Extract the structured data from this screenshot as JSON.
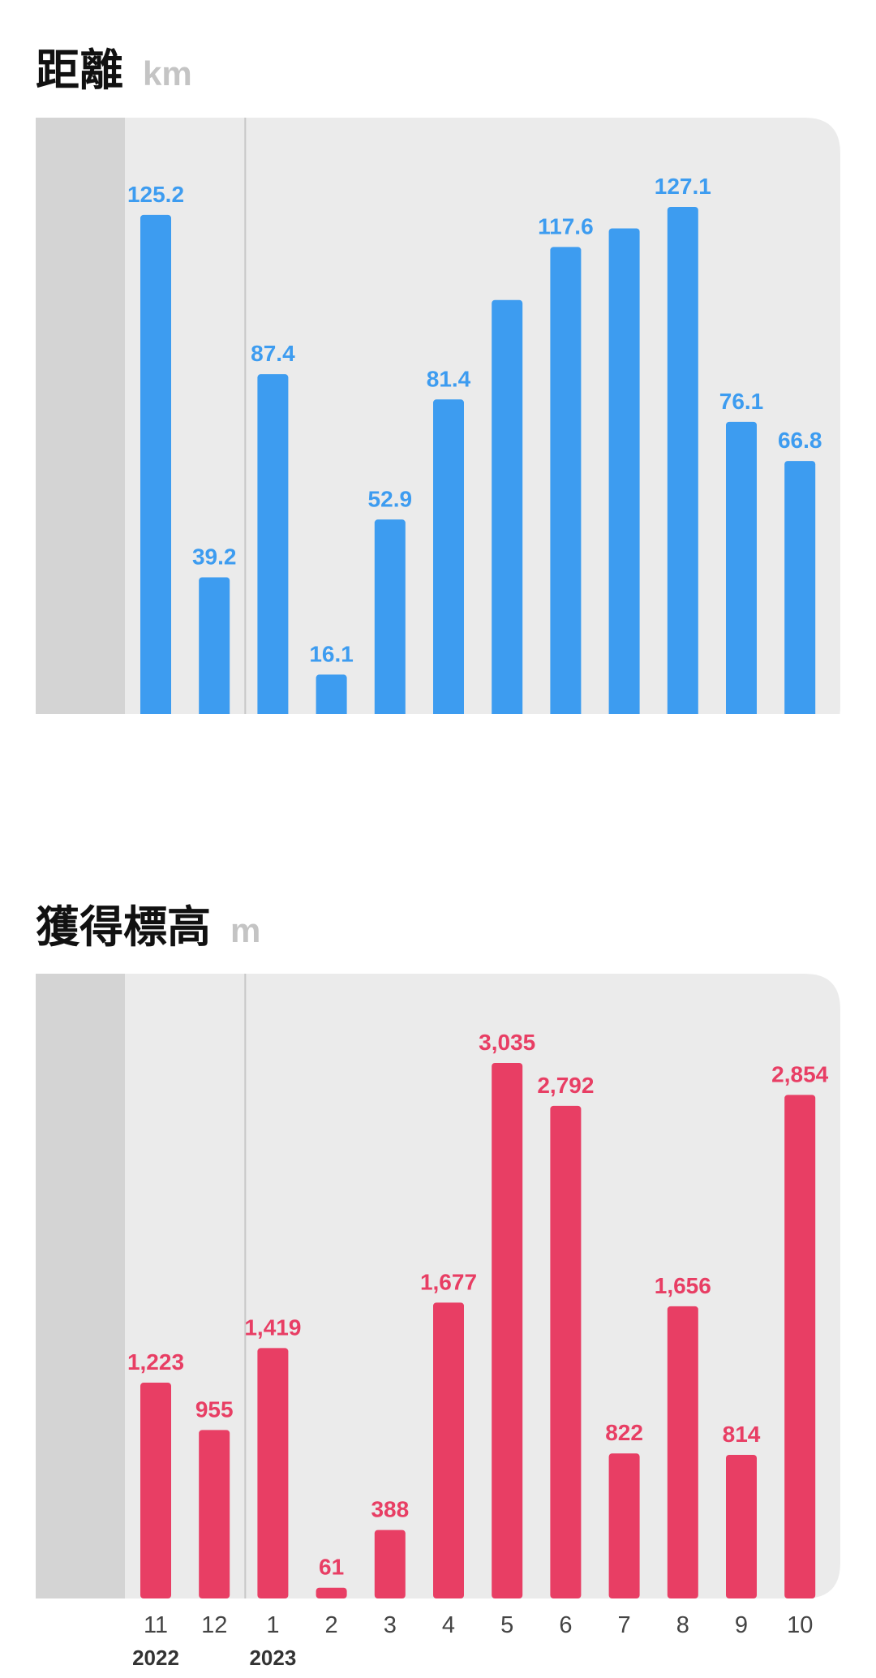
{
  "chart_data": [
    {
      "type": "bar",
      "title": "距離",
      "unit": "km",
      "categories": [
        "11",
        "12",
        "1",
        "2",
        "3",
        "4",
        "5",
        "6",
        "7",
        "8",
        "9",
        "10"
      ],
      "years": [
        {
          "label": "2022",
          "at_index": 0
        },
        {
          "label": "2023",
          "at_index": 2
        }
      ],
      "values": [
        125.2,
        39.2,
        87.4,
        16.1,
        52.9,
        81.4,
        105.0,
        117.6,
        122.0,
        127.1,
        76.1,
        66.8
      ],
      "value_labels": [
        "125.2",
        "39.2",
        "87.4",
        "16.1",
        "52.9",
        "81.4",
        "",
        "117.6",
        "",
        "127.1",
        "76.1",
        "66.8"
      ],
      "ylim": [
        0,
        127.1
      ],
      "color": "#3d9cf0"
    },
    {
      "type": "bar",
      "title": "獲得標高",
      "unit": "m",
      "categories": [
        "11",
        "12",
        "1",
        "2",
        "3",
        "4",
        "5",
        "6",
        "7",
        "8",
        "9",
        "10"
      ],
      "years": [
        {
          "label": "2022",
          "at_index": 0
        },
        {
          "label": "2023",
          "at_index": 2
        }
      ],
      "values": [
        1223,
        955,
        1419,
        61,
        388,
        1677,
        3035,
        2792,
        822,
        1656,
        814,
        2854
      ],
      "value_labels": [
        "1,223",
        "955",
        "1,419",
        "61",
        "388",
        "1,677",
        "3,035",
        "2,792",
        "822",
        "1,656",
        "814",
        "2,854"
      ],
      "ylim": [
        0,
        3035
      ],
      "color": "#e83e64"
    }
  ],
  "colors": {
    "panel_bg": "#ebebeb",
    "gutter_bg": "#d4d4d4",
    "divider": "#c8c8c8",
    "tick_text": "#444444",
    "year_text": "#333333",
    "unit_text": "#c4c4c4"
  }
}
